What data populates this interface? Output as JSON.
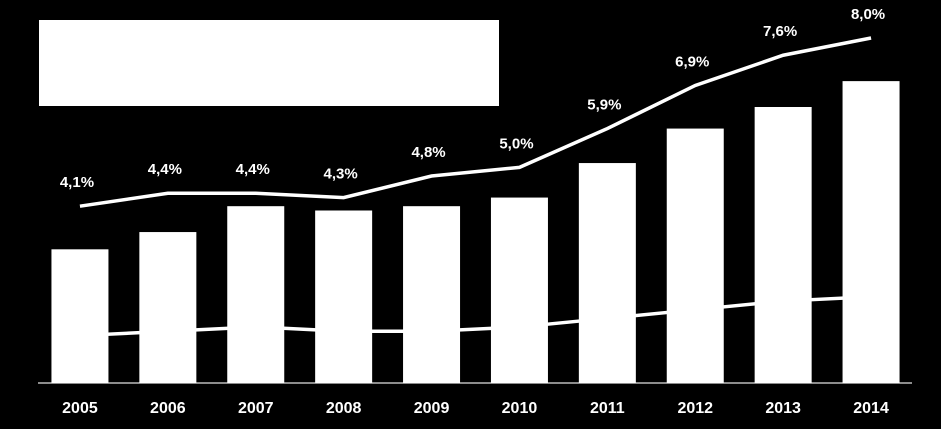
{
  "chart_data": {
    "type": "bar-line",
    "categories": [
      "2005",
      "2006",
      "2007",
      "2008",
      "2009",
      "2010",
      "2011",
      "2012",
      "2013",
      "2014"
    ],
    "series": [
      {
        "type": "bar",
        "color": "#ffffff",
        "values": [
          3.1,
          3.5,
          4.1,
          4.0,
          4.1,
          4.3,
          5.1,
          5.9,
          6.4,
          7.0
        ]
      },
      {
        "type": "line",
        "color": "#ffffff",
        "values": [
          1.1,
          1.2,
          1.3,
          1.2,
          1.2,
          1.3,
          1.5,
          1.7,
          1.9,
          2.0
        ]
      },
      {
        "type": "line",
        "color": "#ffffff",
        "values": [
          4.1,
          4.4,
          4.4,
          4.3,
          4.8,
          5.0,
          5.9,
          6.9,
          7.6,
          8.0
        ],
        "value_labels": [
          "4,1%",
          "4,4%",
          "4,4%",
          "4,3%",
          "4,8%",
          "5,0%",
          "5,9%",
          "6,9%",
          "7,6%",
          "8,0%"
        ]
      }
    ],
    "ylim": [
      0,
      8
    ]
  }
}
